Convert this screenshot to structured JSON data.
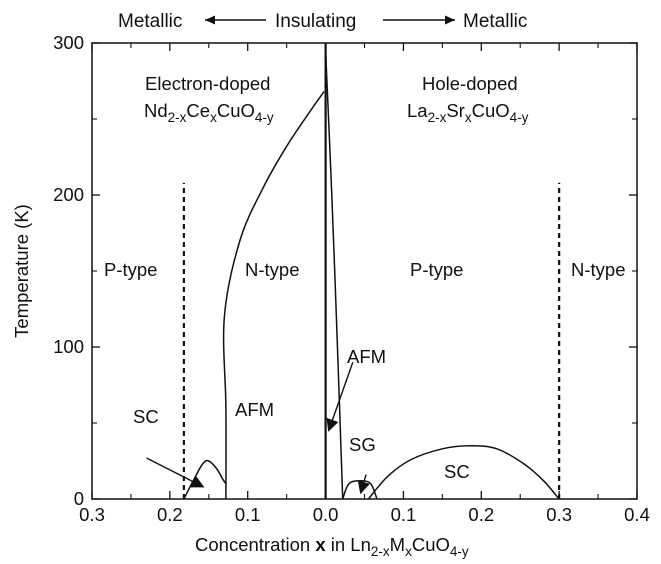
{
  "chart_data": {
    "type": "line",
    "top_labels": {
      "left": "Metallic",
      "center": "Insulating",
      "right": "Metallic"
    },
    "xlabel": {
      "prefix": "Concentration ",
      "bold": "x",
      "mid": " in Ln",
      "sub1": "2-x",
      "m": "M",
      "sub2": "x",
      "cu": "CuO",
      "sub3": "4-y"
    },
    "ylabel": "Temperature (K)",
    "x_ticks": [
      "0.3",
      "0.2",
      "0.1",
      "0.0",
      "0.1",
      "0.2",
      "0.3",
      "0.4"
    ],
    "x_tick_positions": [
      -0.3,
      -0.2,
      -0.1,
      0.0,
      0.1,
      0.2,
      0.3,
      0.4
    ],
    "xlim": [
      -0.3,
      0.4
    ],
    "x_note": "left of 0 is electron-doping concentration (axis reads 0.3 to 0.0), right of 0 is hole-doping concentration",
    "y_ticks": [
      "0",
      "100",
      "200",
      "300"
    ],
    "y_tick_values": [
      0,
      100,
      200,
      300
    ],
    "ylim": [
      0,
      300
    ],
    "panels": {
      "electron": {
        "title": "Electron-doped",
        "formula": {
          "a": "Nd",
          "b": "2-x",
          "c": "Ce",
          "d": "x",
          "e": "CuO",
          "f": "4-y"
        }
      },
      "hole": {
        "title": "Hole-doped",
        "formula": {
          "a": "La",
          "b": "2-x",
          "c": "Sr",
          "d": "x",
          "e": "CuO",
          "f": "4-y"
        }
      }
    },
    "region_labels": {
      "p_type_left": "P-type",
      "n_type_mid": "N-type",
      "p_type_right": "P-type",
      "n_type_right": "N-type",
      "afm_left": "AFM",
      "afm_right": "AFM",
      "sc_left": "SC",
      "sg": "SG",
      "sc_right": "SC"
    },
    "dashed_lines": [
      {
        "x": -0.182,
        "y_top": 208
      },
      {
        "x": 0.3,
        "y_top": 208
      }
    ],
    "curves": [
      {
        "name": "electron_afm_boundary",
        "x": [
          -0.128,
          -0.128,
          -0.13,
          -0.11,
          -0.08,
          -0.05,
          -0.02,
          -0.002
        ],
        "y": [
          0,
          60,
          120,
          170,
          205,
          232,
          255,
          268
        ]
      },
      {
        "name": "electron_sc_dome",
        "x": [
          -0.182,
          -0.17,
          -0.158,
          -0.15,
          -0.14,
          -0.132,
          -0.128
        ],
        "y": [
          0,
          12,
          23,
          25,
          20,
          13,
          10
        ]
      },
      {
        "name": "center_spike",
        "x": [
          0,
          0
        ],
        "y": [
          0,
          300
        ]
      },
      {
        "name": "hole_afm_boundary",
        "x": [
          0.0,
          0.008,
          0.016,
          0.022
        ],
        "y": [
          295,
          200,
          90,
          0
        ]
      },
      {
        "name": "sg_dome",
        "x": [
          0.022,
          0.03,
          0.045,
          0.058,
          0.066
        ],
        "y": [
          0,
          10,
          12,
          10,
          0
        ]
      },
      {
        "name": "hole_sc_dome",
        "x": [
          0.055,
          0.08,
          0.11,
          0.15,
          0.185,
          0.22,
          0.255,
          0.28,
          0.3
        ],
        "y": [
          0,
          15,
          26,
          33,
          35,
          33,
          23,
          12,
          0
        ]
      }
    ],
    "arrows": [
      {
        "name": "sc_left_arrow",
        "from": [
          -0.23,
          27
        ],
        "to": [
          -0.157,
          8
        ]
      },
      {
        "name": "afm_right_arrow",
        "from": [
          0.035,
          90
        ],
        "to": [
          0.004,
          45
        ]
      },
      {
        "name": "sg_arrow",
        "from": [
          0.052,
          16
        ],
        "to": [
          0.045,
          4
        ]
      }
    ],
    "grid": false,
    "legend": "none"
  }
}
